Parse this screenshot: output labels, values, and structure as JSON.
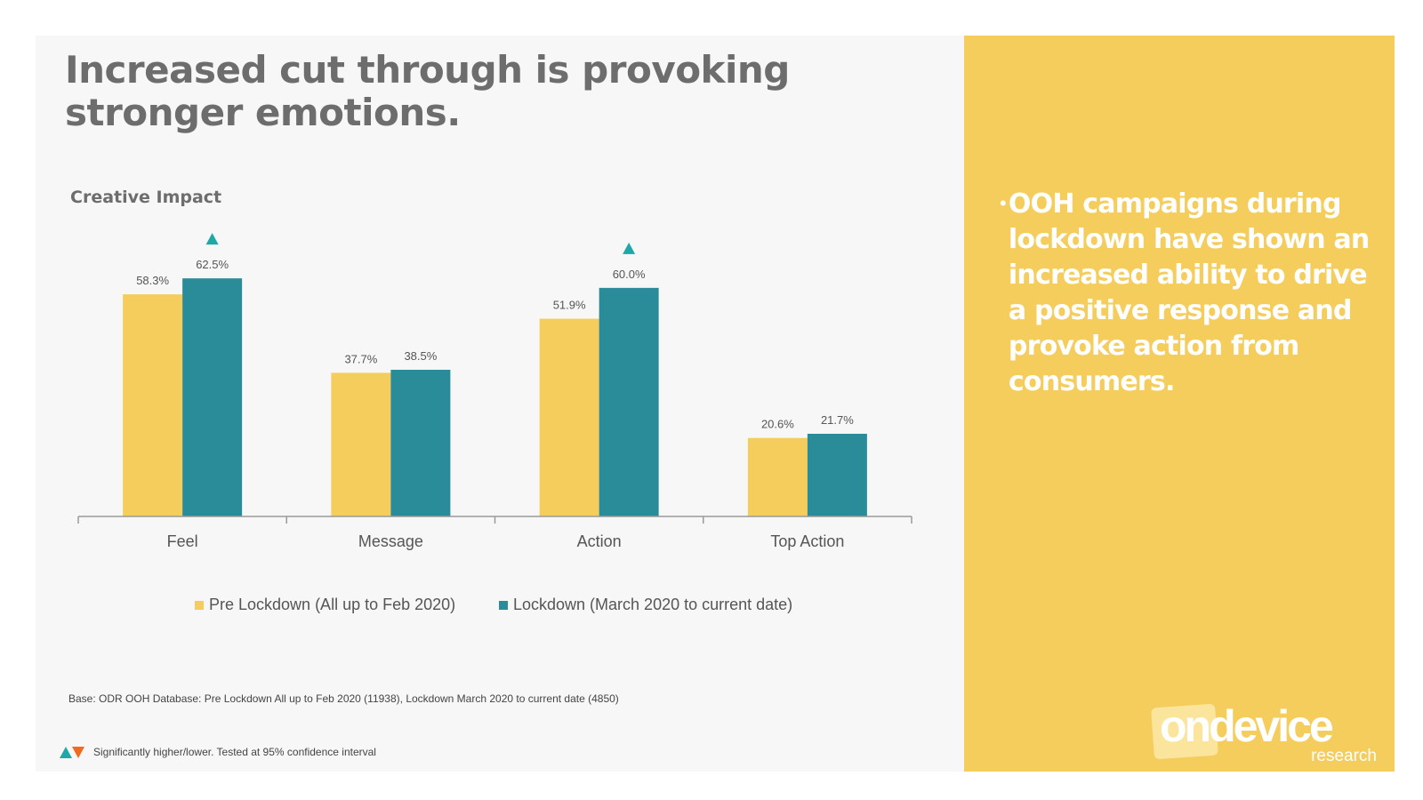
{
  "title": "Increased cut through is provoking stronger emotions.",
  "subtitle": "Creative Impact",
  "colors": {
    "pre": "#f5cd5d",
    "lockdown": "#2a8c99",
    "sig_up": "#1fa8a8",
    "sig_down": "#f26a21",
    "axis": "#9a9a9a",
    "panel": "#f5cd5d"
  },
  "chart_data": {
    "type": "bar",
    "categories": [
      "Feel",
      "Message",
      "Action",
      "Top Action"
    ],
    "series": [
      {
        "name": "Pre Lockdown (All up to Feb 2020)",
        "values": [
          58.3,
          37.7,
          51.9,
          20.6
        ],
        "labels": [
          "58.3%",
          "37.7%",
          "51.9%",
          "20.6%"
        ]
      },
      {
        "name": "Lockdown (March 2020 to current date)",
        "values": [
          62.5,
          38.5,
          60.0,
          21.7
        ],
        "labels": [
          "62.5%",
          "38.5%",
          "60.0%",
          "21.7%"
        ],
        "significant_higher": [
          true,
          false,
          true,
          false
        ]
      }
    ],
    "ylim": [
      0,
      70
    ],
    "grid": false,
    "legend": "bottom"
  },
  "base_note": "Base: ODR OOH Database: Pre Lockdown All up to Feb 2020 (11938), Lockdown March 2020 to current date (4850)",
  "sig_note": "Significantly higher/lower. Tested at 95% confidence interval",
  "bullet": "OOH campaigns during lockdown have shown an increased ability to drive a positive response and provoke action from consumers.",
  "logo": {
    "main": "ondevice",
    "sub": "research"
  }
}
